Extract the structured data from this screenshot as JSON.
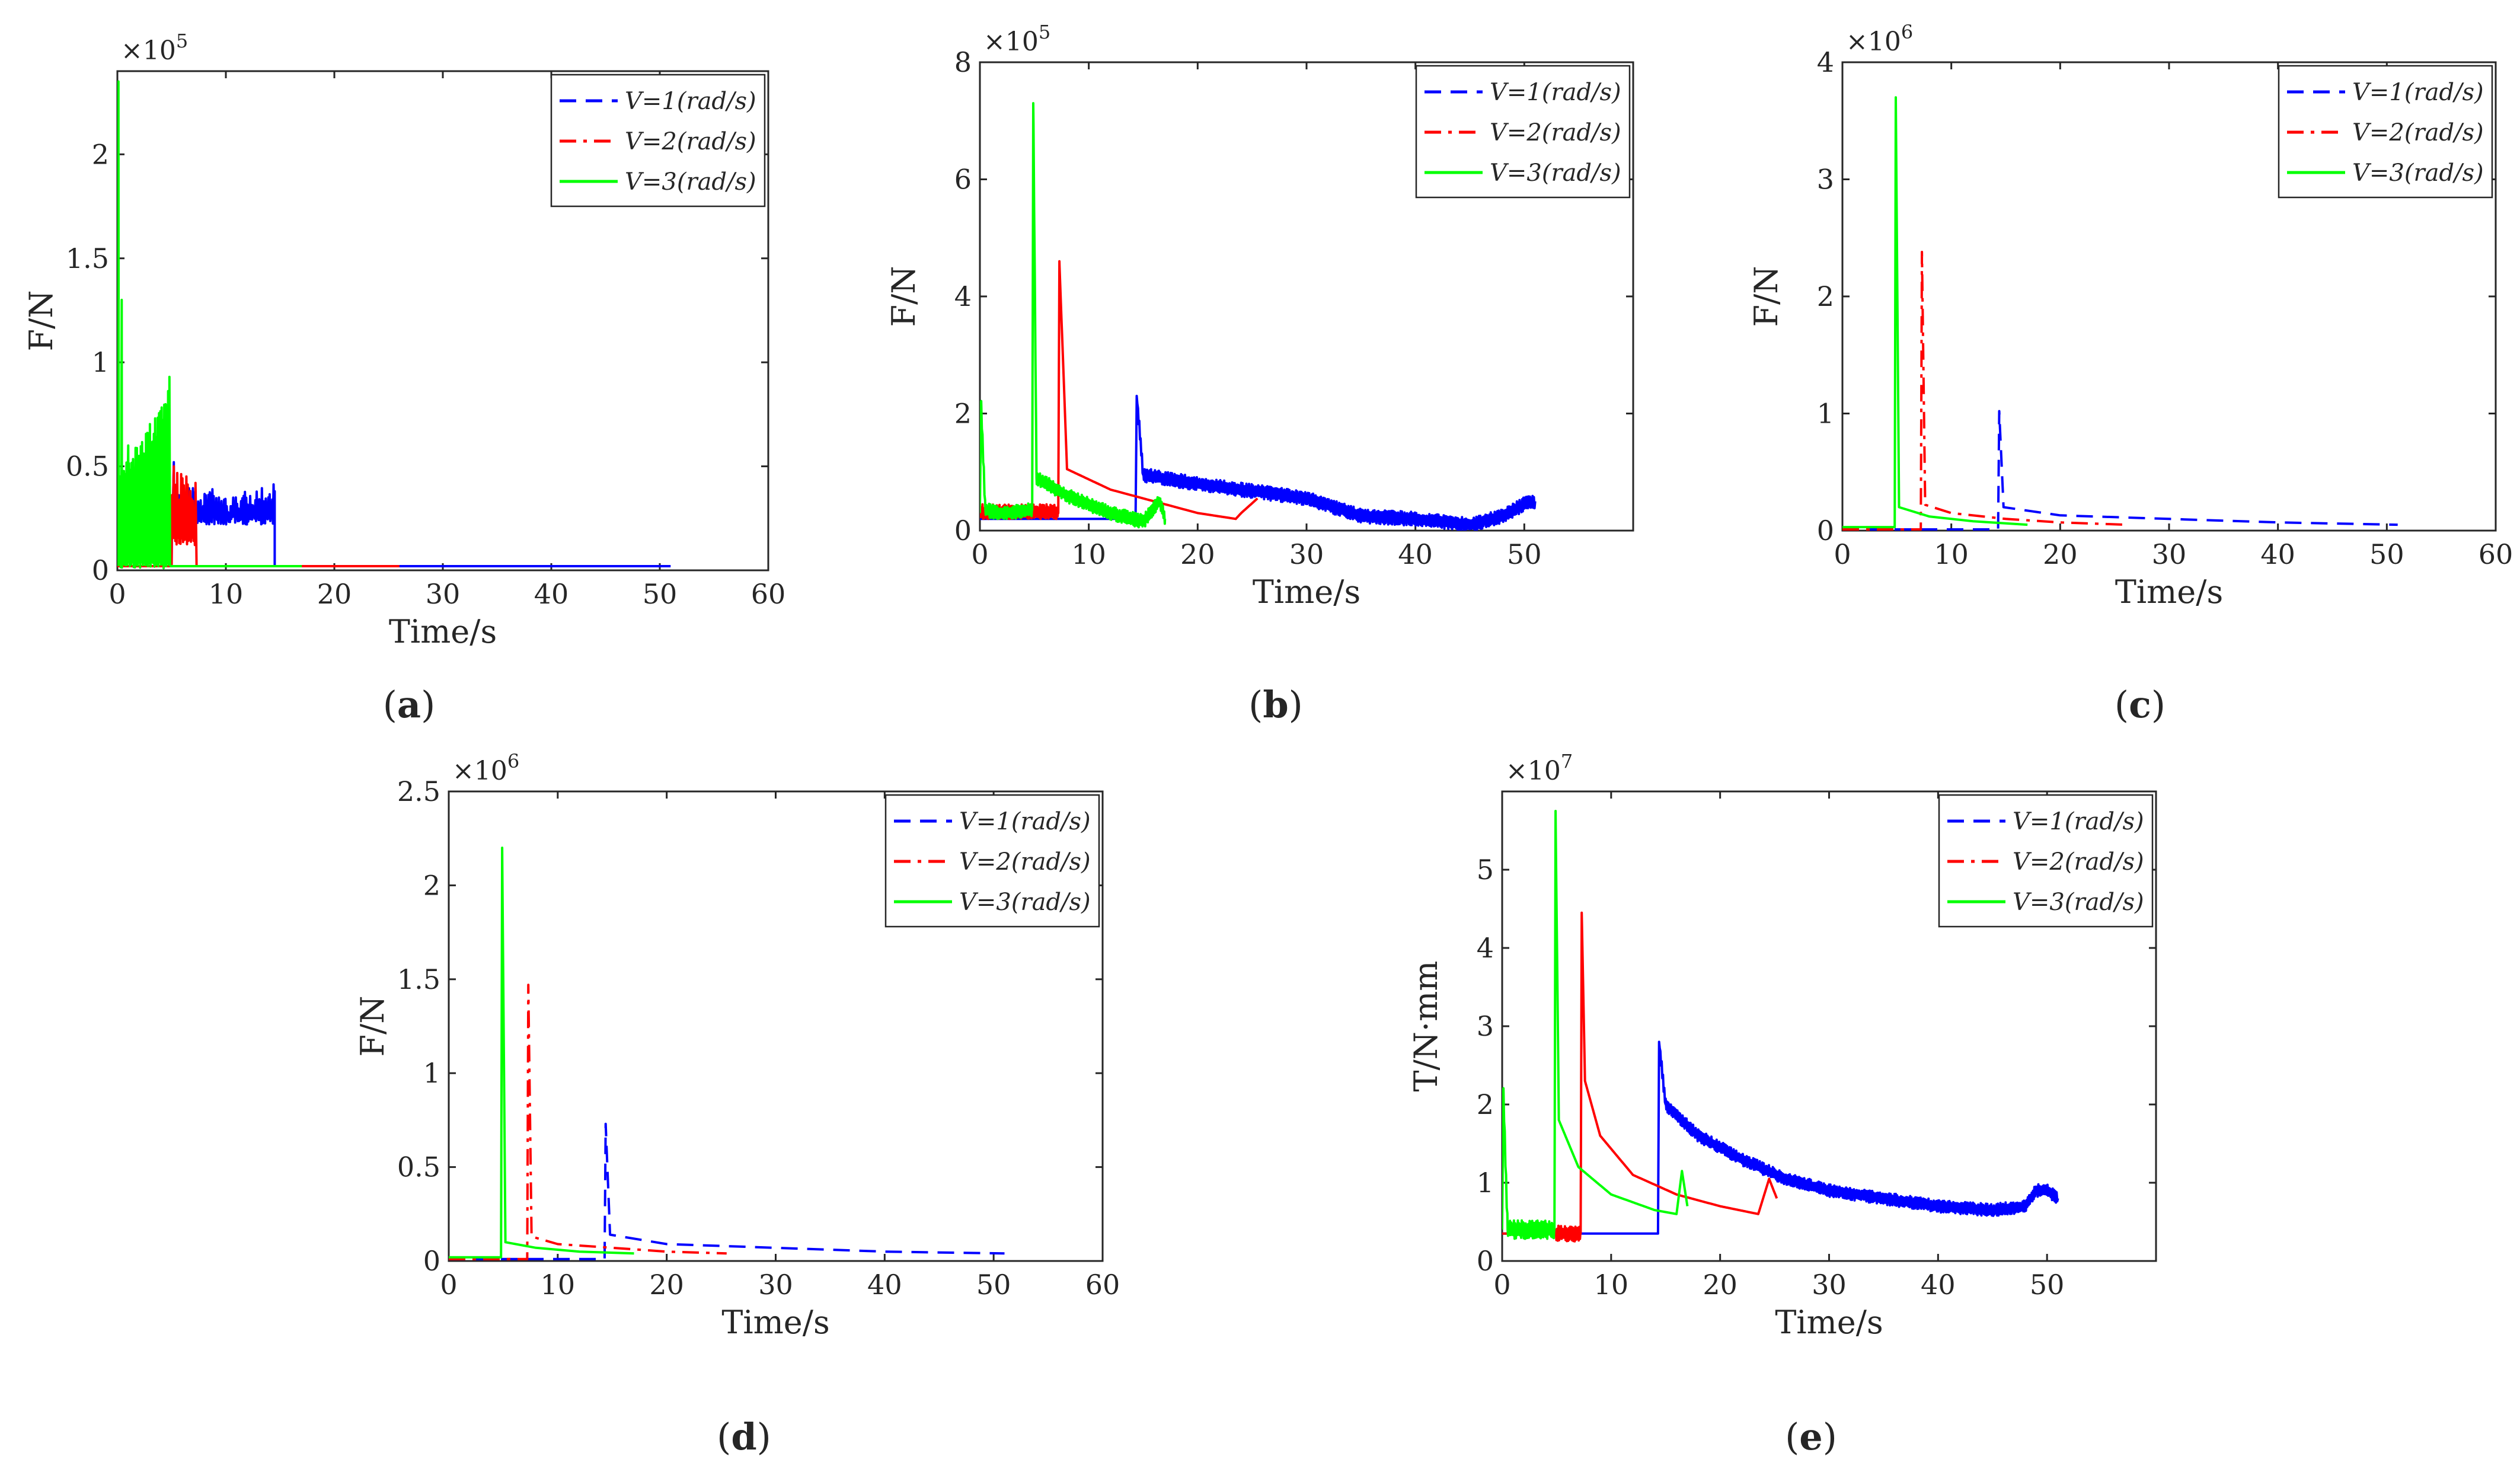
{
  "figure": {
    "chart_data": [
      {
        "id": "a",
        "type": "line",
        "caption": "(a)",
        "title": "",
        "xlabel": "Time/s",
        "ylabel": "F/N",
        "exponent": "×10^5",
        "xlim": [
          0,
          60
        ],
        "ylim": [
          0,
          2.4
        ],
        "xticks": [
          0,
          10,
          20,
          30,
          40,
          50,
          60
        ],
        "xticklabels": [
          "0",
          "10",
          "20",
          "30",
          "40",
          "50",
          "60"
        ],
        "yticks": [
          0,
          0.5,
          1,
          1.5,
          2
        ],
        "yticklabels": [
          "0",
          "0.5",
          "1",
          "1.5",
          "2"
        ],
        "legend": {
          "position": "top-right",
          "entries": [
            "V=1(rad/s)",
            "V=2(rad/s)",
            "V=3(rad/s)"
          ]
        },
        "series": [
          {
            "name": "V=1(rad/s)",
            "color": "#0000ff",
            "style": "dashed",
            "x": [
              0,
              5,
              5.2,
              14.5,
              14.5,
              51
            ],
            "y": [
              0.02,
              0.02,
              0.52,
              0.38,
              0.02,
              0.02
            ],
            "noise": {
              "from": 5,
              "to": 14.5,
              "lo": 0.22,
              "hi": 0.42
            }
          },
          {
            "name": "V=2(rad/s)",
            "color": "#ff0000",
            "style": "dashdot",
            "x": [
              0,
              5,
              5.2,
              7.2,
              7.3,
              26
            ],
            "y": [
              0.02,
              0.02,
              0.5,
              0.42,
              0.02,
              0.02
            ],
            "noise": {
              "from": 5,
              "to": 7.2,
              "lo": 0.12,
              "hi": 0.48
            }
          },
          {
            "name": "V=3(rad/s)",
            "color": "#00ff00",
            "style": "solid",
            "x": [
              0,
              0.1,
              0.4,
              1,
              2,
              3,
              4,
              4.8,
              4.9,
              17
            ],
            "y": [
              0.2,
              2.35,
              1.3,
              0.6,
              0.55,
              0.65,
              0.75,
              0.93,
              0.02,
              0.02
            ],
            "noise": {
              "from": 0,
              "to": 4.9,
              "lo": 0.01,
              "hi": 0.9
            }
          }
        ]
      },
      {
        "id": "b",
        "type": "line",
        "caption": "(b)",
        "title": "",
        "xlabel": "Time/s",
        "ylabel": "F/N",
        "exponent": "×10^5",
        "xlim": [
          0,
          60
        ],
        "ylim": [
          0,
          8
        ],
        "xticks": [
          0,
          10,
          20,
          30,
          40,
          50
        ],
        "xticklabels": [
          "0",
          "10",
          "20",
          "30",
          "40",
          "50"
        ],
        "yticks": [
          0,
          2,
          4,
          6,
          8
        ],
        "yticklabels": [
          "0",
          "2",
          "4",
          "6",
          "8"
        ],
        "legend": {
          "position": "top-right",
          "entries": [
            "V=1(rad/s)",
            "V=2(rad/s)",
            "V=3(rad/s)"
          ]
        },
        "series": [
          {
            "name": "V=1(rad/s)",
            "color": "#0000ff",
            "style": "dashed",
            "x": [
              0,
              14.3,
              14.4,
              15,
              20,
              30,
              35,
              40,
              45,
              48,
              50,
              51
            ],
            "y": [
              0.2,
              0.2,
              2.3,
              0.95,
              0.8,
              0.55,
              0.25,
              0.2,
              0.1,
              0.25,
              0.45,
              0.5
            ],
            "noise": {
              "from": 14.5,
              "to": 51,
              "lo": -0.12,
              "hi": 0.12
            }
          },
          {
            "name": "V=2(rad/s)",
            "color": "#ff0000",
            "style": "dashdot",
            "x": [
              0,
              7.2,
              7.3,
              8,
              12,
              16,
              20,
              23.5,
              24,
              25.5
            ],
            "y": [
              0.3,
              0.3,
              4.6,
              1.05,
              0.7,
              0.5,
              0.3,
              0.2,
              0.3,
              0.55
            ],
            "noise": {
              "from": 0,
              "to": 7.2,
              "lo": -0.1,
              "hi": 0.15
            }
          },
          {
            "name": "V=3(rad/s)",
            "color": "#00ff00",
            "style": "solid",
            "x": [
              0,
              0.1,
              0.5,
              2,
              4.8,
              4.9,
              5.2,
              8,
              12,
              15,
              16.5,
              17
            ],
            "y": [
              0.3,
              2.2,
              0.35,
              0.3,
              0.35,
              7.3,
              0.9,
              0.6,
              0.3,
              0.15,
              0.5,
              0.2
            ],
            "noise": {
              "from": 0,
              "to": 17,
              "lo": -0.12,
              "hi": 0.12
            }
          }
        ]
      },
      {
        "id": "c",
        "type": "line",
        "caption": "(c)",
        "title": "",
        "xlabel": "Time/s",
        "ylabel": "F/N",
        "exponent": "×10^6",
        "xlim": [
          0,
          60
        ],
        "ylim": [
          0,
          4
        ],
        "xticks": [
          0,
          10,
          20,
          30,
          40,
          50,
          60
        ],
        "xticklabels": [
          "0",
          "10",
          "20",
          "30",
          "40",
          "50",
          "60"
        ],
        "yticks": [
          0,
          1,
          2,
          3,
          4
        ],
        "yticklabels": [
          "0",
          "1",
          "2",
          "3",
          "4"
        ],
        "legend": {
          "position": "top-right",
          "entries": [
            "V=1(rad/s)",
            "V=2(rad/s)",
            "V=3(rad/s)"
          ]
        },
        "series": [
          {
            "name": "V=1(rad/s)",
            "color": "#0000ff",
            "style": "dashed",
            "x": [
              0,
              14.3,
              14.4,
              14.8,
              20,
              30,
              40,
              51
            ],
            "y": [
              0.01,
              0.01,
              1.02,
              0.2,
              0.13,
              0.1,
              0.07,
              0.05
            ]
          },
          {
            "name": "V=2(rad/s)",
            "color": "#ff0000",
            "style": "dashdot",
            "x": [
              0,
              7.2,
              7.3,
              7.6,
              10,
              15,
              20,
              26
            ],
            "y": [
              0.01,
              0.01,
              2.38,
              0.22,
              0.15,
              0.1,
              0.07,
              0.05
            ]
          },
          {
            "name": "V=3(rad/s)",
            "color": "#00ff00",
            "style": "solid",
            "x": [
              0,
              4.8,
              4.9,
              5.2,
              8,
              12,
              17
            ],
            "y": [
              0.03,
              0.03,
              3.7,
              0.2,
              0.12,
              0.08,
              0.05
            ]
          }
        ]
      },
      {
        "id": "d",
        "type": "line",
        "caption": "(d)",
        "title": "",
        "xlabel": "Time/s",
        "ylabel": "F/N",
        "exponent": "×10^6",
        "xlim": [
          0,
          60
        ],
        "ylim": [
          0,
          2.5
        ],
        "xticks": [
          0,
          10,
          20,
          30,
          40,
          50,
          60
        ],
        "xticklabels": [
          "0",
          "10",
          "20",
          "30",
          "40",
          "50",
          "60"
        ],
        "yticks": [
          0,
          0.5,
          1,
          1.5,
          2,
          2.5
        ],
        "yticklabels": [
          "0",
          "0.5",
          "1",
          "1.5",
          "2",
          "2.5"
        ],
        "legend": {
          "position": "top-right",
          "entries": [
            "V=1(rad/s)",
            "V=2(rad/s)",
            "V=3(rad/s)"
          ]
        },
        "series": [
          {
            "name": "V=1(rad/s)",
            "color": "#0000ff",
            "style": "dashed",
            "x": [
              0,
              14.3,
              14.4,
              14.8,
              20,
              30,
              40,
              51
            ],
            "y": [
              0.01,
              0.01,
              0.73,
              0.14,
              0.09,
              0.07,
              0.05,
              0.04
            ]
          },
          {
            "name": "V=2(rad/s)",
            "color": "#ff0000",
            "style": "dashdot",
            "x": [
              0,
              7.2,
              7.3,
              7.6,
              10,
              15,
              20,
              25.5
            ],
            "y": [
              0.01,
              0.01,
              1.47,
              0.13,
              0.09,
              0.07,
              0.05,
              0.04
            ]
          },
          {
            "name": "V=3(rad/s)",
            "color": "#00ff00",
            "style": "solid",
            "x": [
              0,
              4.8,
              4.9,
              5.2,
              8,
              12,
              17
            ],
            "y": [
              0.02,
              0.02,
              2.2,
              0.1,
              0.07,
              0.05,
              0.04
            ]
          }
        ]
      },
      {
        "id": "e",
        "type": "line",
        "caption": "(e)",
        "title": "",
        "xlabel": "Time/s",
        "ylabel": "T/N·mm",
        "exponent": "×10^7",
        "xlim": [
          0,
          60
        ],
        "ylim": [
          0,
          6
        ],
        "xticks": [
          0,
          10,
          20,
          30,
          40,
          50
        ],
        "xticklabels": [
          "0",
          "10",
          "20",
          "30",
          "40",
          "50"
        ],
        "yticks": [
          0,
          1,
          2,
          3,
          4,
          5
        ],
        "yticklabels": [
          "0",
          "1",
          "2",
          "3",
          "4",
          "5"
        ],
        "legend": {
          "position": "top-right",
          "entries": [
            "V=1(rad/s)",
            "V=2(rad/s)",
            "V=3(rad/s)"
          ]
        },
        "series": [
          {
            "name": "V=1(rad/s)",
            "color": "#0000ff",
            "style": "dashed",
            "x": [
              0,
              7.3,
              14.3,
              14.4,
              15,
              18,
              22,
              26,
              30,
              35,
              40,
              45,
              48,
              49,
              50,
              51
            ],
            "y": [
              0.35,
              0.35,
              0.35,
              2.8,
              2.0,
              1.6,
              1.3,
              1.05,
              0.9,
              0.8,
              0.7,
              0.65,
              0.7,
              0.9,
              0.9,
              0.8
            ],
            "noise": {
              "from": 14.5,
              "to": 51,
              "lo": -0.08,
              "hi": 0.08
            }
          },
          {
            "name": "V=2(rad/s)",
            "color": "#ff0000",
            "style": "dashdot",
            "x": [
              0,
              7.2,
              7.3,
              7.6,
              9,
              12,
              16,
              20,
              23.5,
              24.5,
              25.2
            ],
            "y": [
              0.35,
              0.35,
              4.45,
              2.3,
              1.6,
              1.1,
              0.85,
              0.7,
              0.6,
              1.05,
              0.8
            ],
            "noise": {
              "from": 4.9,
              "to": 7.2,
              "lo": -0.1,
              "hi": 0.1
            }
          },
          {
            "name": "V=3(rad/s)",
            "color": "#00ff00",
            "style": "solid",
            "x": [
              0,
              0.1,
              0.5,
              2,
              4.8,
              4.9,
              5.2,
              7,
              10,
              14,
              16,
              16.5,
              17
            ],
            "y": [
              0.4,
              2.2,
              0.4,
              0.4,
              0.4,
              5.75,
              1.8,
              1.2,
              0.85,
              0.65,
              0.6,
              1.15,
              0.7
            ],
            "noise": {
              "from": 0,
              "to": 4.9,
              "lo": -0.12,
              "hi": 0.12
            }
          }
        ]
      }
    ]
  }
}
